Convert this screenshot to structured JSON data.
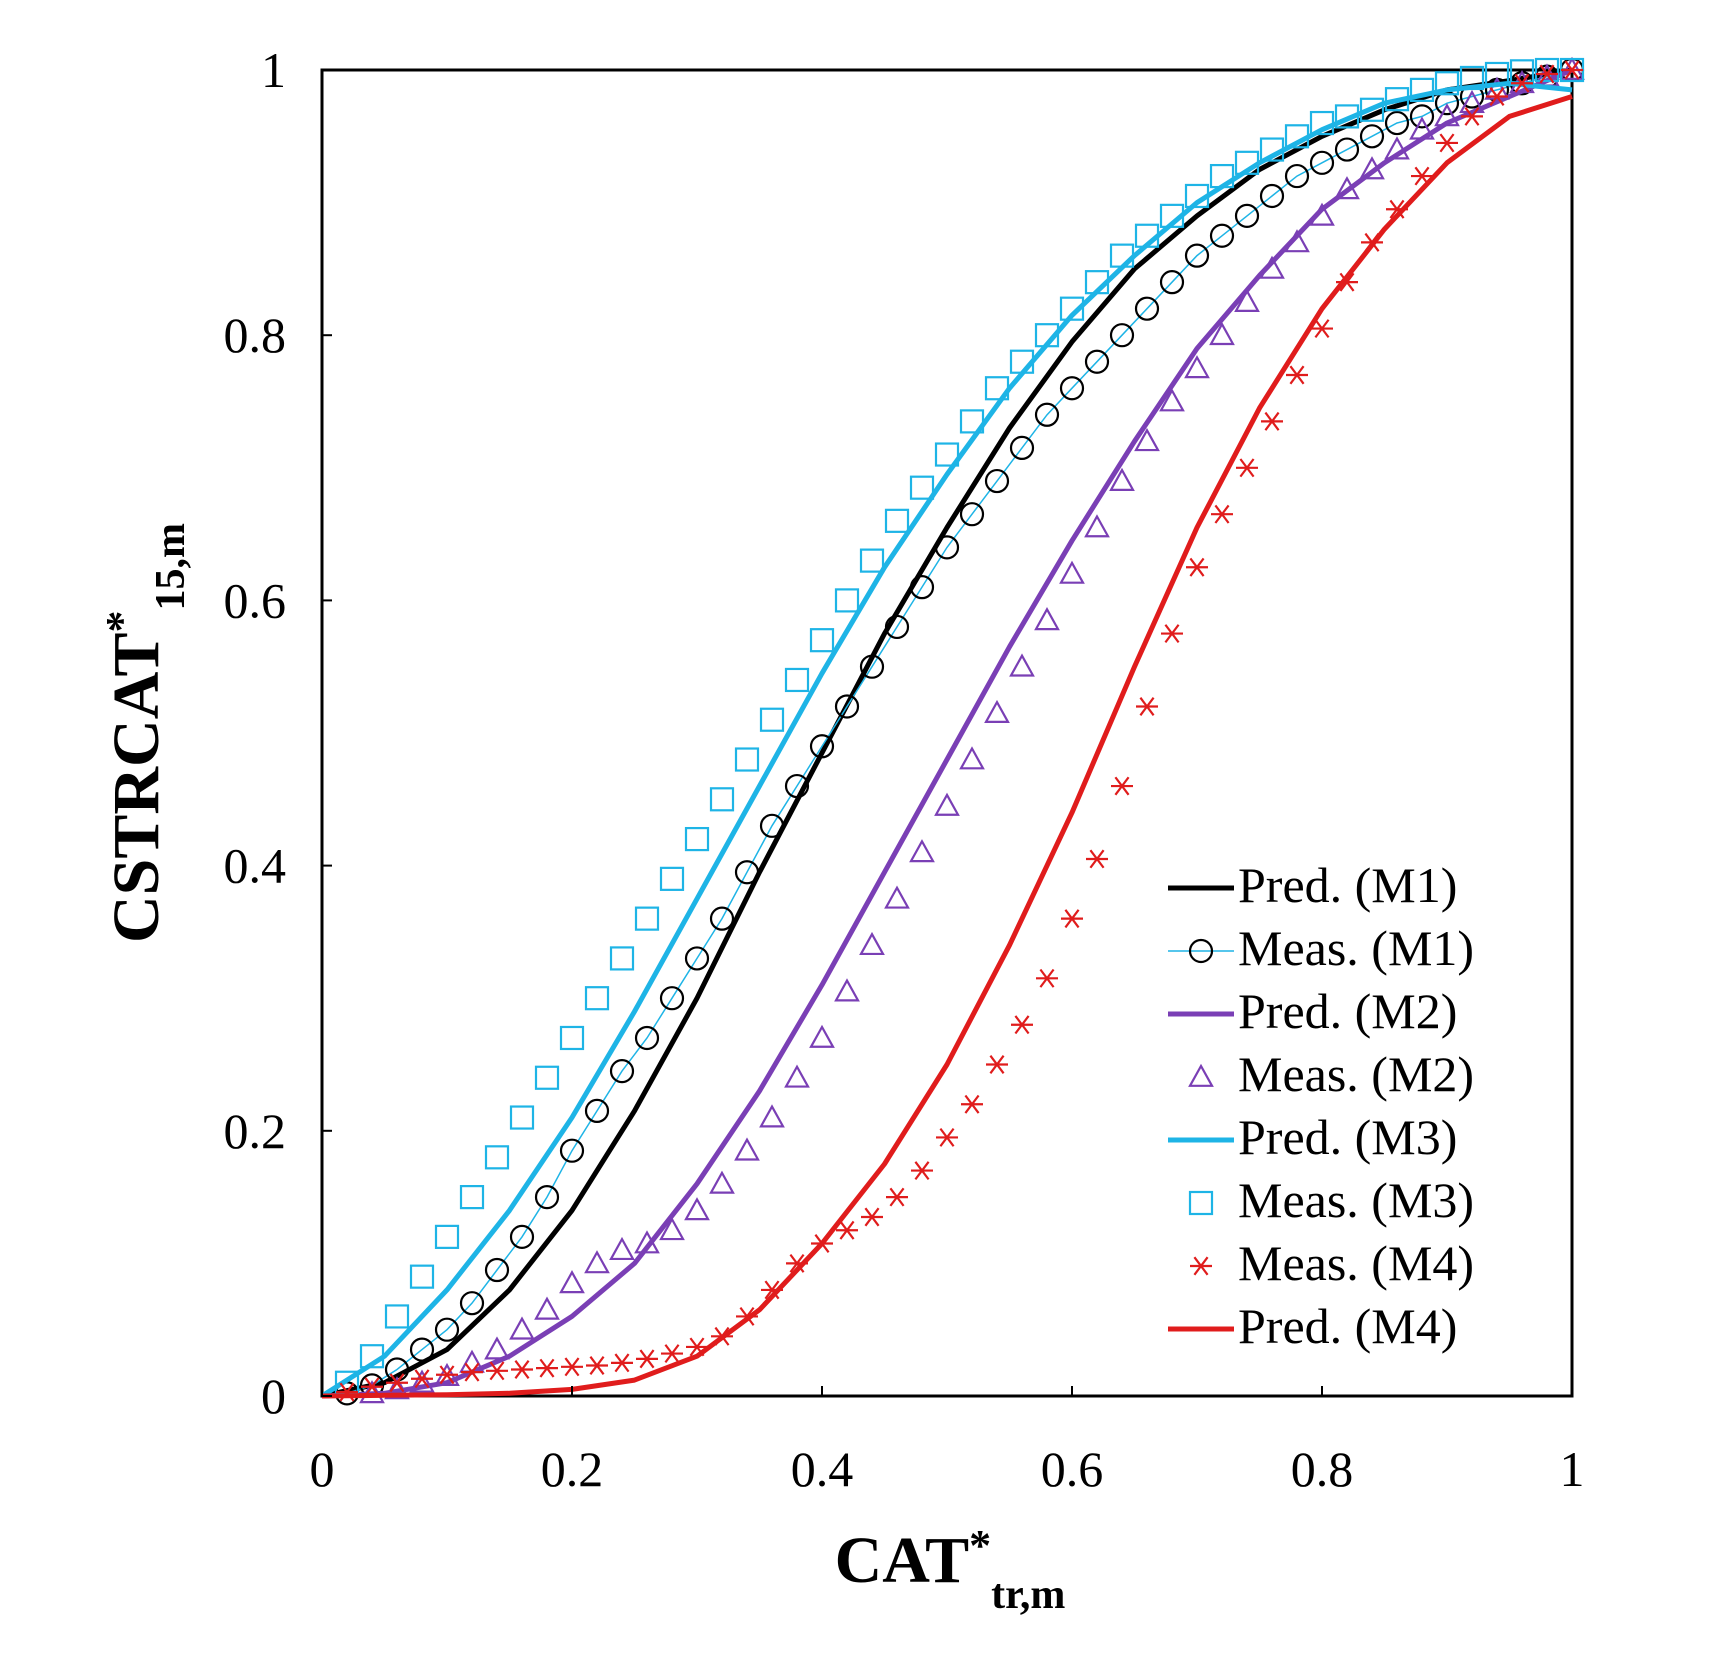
{
  "chart_data": {
    "type": "line",
    "title": "",
    "xlabel": {
      "main": "CAT",
      "sup": "*",
      "sub": "tr,m"
    },
    "ylabel": {
      "main": "CSTRCAT",
      "sup": "*",
      "sub": "15,m"
    },
    "xlim": [
      0,
      1
    ],
    "ylim": [
      0,
      1
    ],
    "xticks": [
      0,
      0.2,
      0.4,
      0.6,
      0.8,
      1
    ],
    "yticks": [
      0,
      0.2,
      0.4,
      0.6,
      0.8,
      1
    ],
    "xtick_labels": [
      "0",
      "0.2",
      "0.4",
      "0.6",
      "0.8",
      "1"
    ],
    "ytick_labels": [
      "0",
      "0.2",
      "0.4",
      "0.6",
      "0.8",
      "1"
    ],
    "grid": false,
    "legend_position": "bottom-right",
    "colors": {
      "M1": "#000000",
      "M2": "#7a3fb5",
      "M3": "#1eb4e6",
      "M4": "#e01c1c",
      "M1_marker_line": "#1eb4e6"
    },
    "series": [
      {
        "name": "Pred.  (M1)",
        "kind": "line",
        "color": "#000000",
        "x": [
          0,
          0.05,
          0.1,
          0.15,
          0.2,
          0.25,
          0.3,
          0.35,
          0.4,
          0.45,
          0.5,
          0.55,
          0.6,
          0.65,
          0.7,
          0.75,
          0.8,
          0.85,
          0.9,
          0.95,
          1.0
        ],
        "y": [
          0,
          0.01,
          0.035,
          0.08,
          0.14,
          0.215,
          0.3,
          0.395,
          0.485,
          0.575,
          0.655,
          0.73,
          0.795,
          0.85,
          0.89,
          0.925,
          0.95,
          0.97,
          0.985,
          0.992,
          1.0
        ]
      },
      {
        "name": "Meas. (M1)",
        "kind": "marker",
        "marker": "circle",
        "color": "#000000",
        "x": [
          0.02,
          0.04,
          0.06,
          0.08,
          0.1,
          0.12,
          0.14,
          0.16,
          0.18,
          0.2,
          0.22,
          0.24,
          0.26,
          0.28,
          0.3,
          0.32,
          0.34,
          0.36,
          0.38,
          0.4,
          0.42,
          0.44,
          0.46,
          0.48,
          0.5,
          0.52,
          0.54,
          0.56,
          0.58,
          0.6,
          0.62,
          0.64,
          0.66,
          0.68,
          0.7,
          0.72,
          0.74,
          0.76,
          0.78,
          0.8,
          0.82,
          0.84,
          0.86,
          0.88,
          0.9,
          0.92,
          0.94,
          0.96,
          0.98,
          1.0
        ],
        "y": [
          0.002,
          0.008,
          0.02,
          0.035,
          0.05,
          0.07,
          0.095,
          0.12,
          0.15,
          0.185,
          0.215,
          0.245,
          0.27,
          0.3,
          0.33,
          0.36,
          0.395,
          0.43,
          0.46,
          0.49,
          0.52,
          0.55,
          0.58,
          0.61,
          0.64,
          0.665,
          0.69,
          0.715,
          0.74,
          0.76,
          0.78,
          0.8,
          0.82,
          0.84,
          0.86,
          0.875,
          0.89,
          0.905,
          0.92,
          0.93,
          0.94,
          0.95,
          0.96,
          0.965,
          0.975,
          0.98,
          0.985,
          0.99,
          0.995,
          1.0
        ]
      },
      {
        "name": "Pred.  (M2)",
        "kind": "line",
        "color": "#7a3fb5",
        "x": [
          0,
          0.05,
          0.1,
          0.15,
          0.2,
          0.25,
          0.3,
          0.35,
          0.4,
          0.45,
          0.5,
          0.55,
          0.6,
          0.65,
          0.7,
          0.75,
          0.8,
          0.85,
          0.9,
          0.95,
          1.0
        ],
        "y": [
          0,
          0.002,
          0.01,
          0.03,
          0.06,
          0.1,
          0.16,
          0.23,
          0.31,
          0.395,
          0.48,
          0.565,
          0.645,
          0.72,
          0.79,
          0.845,
          0.895,
          0.93,
          0.96,
          0.98,
          1.0
        ]
      },
      {
        "name": "Meas. (M2)",
        "kind": "marker",
        "marker": "triangle",
        "color": "#7a3fb5",
        "x": [
          0.04,
          0.06,
          0.08,
          0.1,
          0.12,
          0.14,
          0.16,
          0.18,
          0.2,
          0.22,
          0.24,
          0.26,
          0.28,
          0.3,
          0.32,
          0.34,
          0.36,
          0.38,
          0.4,
          0.42,
          0.44,
          0.46,
          0.48,
          0.5,
          0.52,
          0.54,
          0.56,
          0.58,
          0.6,
          0.62,
          0.64,
          0.66,
          0.68,
          0.7,
          0.72,
          0.74,
          0.76,
          0.78,
          0.8,
          0.82,
          0.84,
          0.86,
          0.88,
          0.9,
          0.92,
          0.94,
          0.96,
          0.98,
          1.0
        ],
        "y": [
          0.002,
          0.005,
          0.01,
          0.015,
          0.025,
          0.035,
          0.05,
          0.065,
          0.085,
          0.1,
          0.11,
          0.115,
          0.125,
          0.14,
          0.16,
          0.185,
          0.21,
          0.24,
          0.27,
          0.305,
          0.34,
          0.375,
          0.41,
          0.445,
          0.48,
          0.515,
          0.55,
          0.585,
          0.62,
          0.655,
          0.69,
          0.72,
          0.75,
          0.775,
          0.8,
          0.825,
          0.85,
          0.87,
          0.89,
          0.91,
          0.925,
          0.94,
          0.955,
          0.965,
          0.975,
          0.985,
          0.99,
          0.995,
          1.0
        ]
      },
      {
        "name": "Pred.  (M3)",
        "kind": "line",
        "color": "#1eb4e6",
        "x": [
          0,
          0.05,
          0.1,
          0.15,
          0.2,
          0.25,
          0.3,
          0.35,
          0.4,
          0.45,
          0.5,
          0.55,
          0.6,
          0.65,
          0.7,
          0.75,
          0.8,
          0.85,
          0.9,
          0.95,
          1.0
        ],
        "y": [
          0,
          0.03,
          0.08,
          0.14,
          0.21,
          0.29,
          0.375,
          0.46,
          0.545,
          0.625,
          0.695,
          0.76,
          0.815,
          0.86,
          0.9,
          0.93,
          0.955,
          0.975,
          0.985,
          0.99,
          0.985
        ]
      },
      {
        "name": "Meas. (M3)",
        "kind": "marker",
        "marker": "square",
        "color": "#1eb4e6",
        "x": [
          0.02,
          0.04,
          0.06,
          0.08,
          0.1,
          0.12,
          0.14,
          0.16,
          0.18,
          0.2,
          0.22,
          0.24,
          0.26,
          0.28,
          0.3,
          0.32,
          0.34,
          0.36,
          0.38,
          0.4,
          0.42,
          0.44,
          0.46,
          0.48,
          0.5,
          0.52,
          0.54,
          0.56,
          0.58,
          0.6,
          0.62,
          0.64,
          0.66,
          0.68,
          0.7,
          0.72,
          0.74,
          0.76,
          0.78,
          0.8,
          0.82,
          0.84,
          0.86,
          0.88,
          0.9,
          0.92,
          0.94,
          0.96,
          0.98,
          1.0
        ],
        "y": [
          0.01,
          0.03,
          0.06,
          0.09,
          0.12,
          0.15,
          0.18,
          0.21,
          0.24,
          0.27,
          0.3,
          0.33,
          0.36,
          0.39,
          0.42,
          0.45,
          0.48,
          0.51,
          0.54,
          0.57,
          0.6,
          0.63,
          0.66,
          0.685,
          0.71,
          0.735,
          0.76,
          0.78,
          0.8,
          0.82,
          0.84,
          0.86,
          0.875,
          0.89,
          0.905,
          0.92,
          0.93,
          0.94,
          0.95,
          0.96,
          0.965,
          0.97,
          0.978,
          0.985,
          0.99,
          0.994,
          0.997,
          0.999,
          1.0,
          1.0
        ]
      },
      {
        "name": "Meas. (M4)",
        "kind": "marker",
        "marker": "asterisk",
        "color": "#e01c1c",
        "x": [
          0.02,
          0.04,
          0.06,
          0.08,
          0.1,
          0.12,
          0.14,
          0.16,
          0.18,
          0.2,
          0.22,
          0.24,
          0.26,
          0.28,
          0.3,
          0.32,
          0.34,
          0.36,
          0.38,
          0.4,
          0.42,
          0.44,
          0.46,
          0.48,
          0.5,
          0.52,
          0.54,
          0.56,
          0.58,
          0.6,
          0.62,
          0.64,
          0.66,
          0.68,
          0.7,
          0.72,
          0.74,
          0.76,
          0.78,
          0.8,
          0.82,
          0.84,
          0.86,
          0.88,
          0.9,
          0.92,
          0.94,
          0.96,
          0.98,
          1.0
        ],
        "y": [
          0.003,
          0.007,
          0.01,
          0.013,
          0.016,
          0.018,
          0.019,
          0.02,
          0.021,
          0.022,
          0.023,
          0.025,
          0.028,
          0.032,
          0.037,
          0.045,
          0.06,
          0.08,
          0.1,
          0.115,
          0.125,
          0.135,
          0.15,
          0.17,
          0.195,
          0.22,
          0.25,
          0.28,
          0.315,
          0.36,
          0.405,
          0.46,
          0.52,
          0.575,
          0.625,
          0.665,
          0.7,
          0.735,
          0.77,
          0.805,
          0.84,
          0.87,
          0.895,
          0.92,
          0.945,
          0.965,
          0.98,
          0.99,
          0.997,
          1.0
        ]
      },
      {
        "name": "Pred.  (M4)",
        "kind": "line",
        "color": "#e01c1c",
        "x": [
          0,
          0.05,
          0.1,
          0.15,
          0.2,
          0.25,
          0.3,
          0.35,
          0.4,
          0.45,
          0.5,
          0.55,
          0.6,
          0.65,
          0.7,
          0.75,
          0.8,
          0.85,
          0.9,
          0.95,
          1.0
        ],
        "y": [
          0,
          0.0005,
          0.001,
          0.002,
          0.005,
          0.012,
          0.03,
          0.065,
          0.115,
          0.175,
          0.25,
          0.34,
          0.44,
          0.55,
          0.655,
          0.745,
          0.82,
          0.88,
          0.93,
          0.965,
          0.98
        ]
      }
    ]
  }
}
